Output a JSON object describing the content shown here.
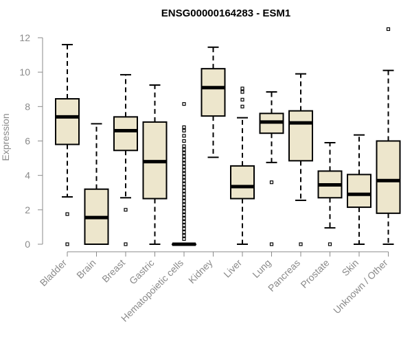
{
  "chart_data": {
    "type": "box",
    "title": "ENSG00000164283 - ESM1",
    "xlabel": "",
    "ylabel": "Expression",
    "ylim": [
      0,
      12
    ],
    "yticks": [
      0,
      2,
      4,
      6,
      8,
      10,
      12
    ],
    "box_fill": "#ede6cc",
    "median_color": "#000000",
    "categories": [
      "Bladder",
      "Brain",
      "Breast",
      "Gastric",
      "Hematopoietic cells",
      "Kidney",
      "Liver",
      "Lung",
      "Pancreas",
      "Prostate",
      "Skin",
      "Unknown / Other"
    ],
    "boxes": [
      {
        "whisker_low": 2.75,
        "q1": 5.8,
        "median": 7.4,
        "q3": 8.45,
        "whisker_high": 11.6,
        "outliers": [
          1.75,
          0.0
        ]
      },
      {
        "whisker_low": 0.0,
        "q1": 0.0,
        "median": 1.55,
        "q3": 3.2,
        "whisker_high": 7.0,
        "outliers": []
      },
      {
        "whisker_low": 2.7,
        "q1": 5.45,
        "median": 6.6,
        "q3": 7.4,
        "whisker_high": 9.85,
        "outliers": [
          2.0,
          0.0
        ]
      },
      {
        "whisker_low": 0.0,
        "q1": 2.65,
        "median": 4.8,
        "q3": 7.1,
        "whisker_high": 9.25,
        "outliers": []
      },
      {
        "whisker_low": 0.0,
        "q1": 0.0,
        "median": 0.0,
        "q3": 0.0,
        "whisker_high": 0.0,
        "outliers": [
          8.15,
          6.8,
          6.6,
          6.3,
          6.0,
          5.7,
          5.5,
          5.3,
          5.1,
          4.9,
          4.7,
          4.5,
          4.3,
          4.1,
          3.9,
          3.7,
          3.5,
          3.3,
          3.1,
          2.9,
          2.7,
          2.5,
          2.3,
          2.1,
          1.9,
          1.7,
          1.5,
          1.3,
          1.1,
          0.9,
          0.7,
          0.5,
          0.3
        ]
      },
      {
        "whisker_low": 5.05,
        "q1": 7.45,
        "median": 9.1,
        "q3": 10.2,
        "whisker_high": 11.45,
        "outliers": []
      },
      {
        "whisker_low": 0.0,
        "q1": 2.65,
        "median": 3.35,
        "q3": 4.55,
        "whisker_high": 7.35,
        "outliers": [
          8.4,
          8.0,
          8.85,
          9.05
        ]
      },
      {
        "whisker_low": 4.75,
        "q1": 6.45,
        "median": 7.1,
        "q3": 7.6,
        "whisker_high": 8.85,
        "outliers": [
          3.6,
          0.0
        ]
      },
      {
        "whisker_low": 2.55,
        "q1": 4.85,
        "median": 7.05,
        "q3": 7.75,
        "whisker_high": 9.9,
        "outliers": [
          0.0
        ]
      },
      {
        "whisker_low": 0.95,
        "q1": 2.7,
        "median": 3.45,
        "q3": 4.25,
        "whisker_high": 5.9,
        "outliers": [
          0.0
        ]
      },
      {
        "whisker_low": 0.0,
        "q1": 2.15,
        "median": 2.9,
        "q3": 4.05,
        "whisker_high": 6.35,
        "outliers": []
      },
      {
        "whisker_low": 0.0,
        "q1": 1.8,
        "median": 3.7,
        "q3": 6.0,
        "whisker_high": 10.1,
        "outliers": [
          12.5
        ]
      }
    ]
  }
}
